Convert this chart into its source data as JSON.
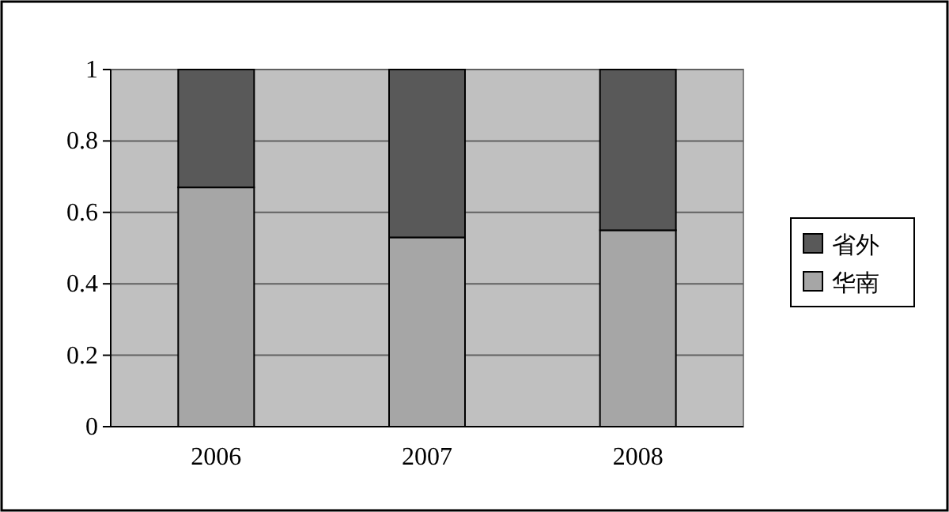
{
  "chart_data": {
    "type": "bar",
    "stacked": true,
    "categories": [
      "2006",
      "2007",
      "2008"
    ],
    "series": [
      {
        "name": "华南",
        "color": "#a6a6a6",
        "values": [
          0.67,
          0.53,
          0.55
        ]
      },
      {
        "name": "省外",
        "color": "#595959",
        "values": [
          0.33,
          0.47,
          0.45
        ]
      }
    ],
    "ylim": [
      0,
      1
    ],
    "yticks": [
      0,
      0.2,
      0.4,
      0.6,
      0.8,
      1
    ],
    "grid": "y",
    "legend": "right"
  }
}
